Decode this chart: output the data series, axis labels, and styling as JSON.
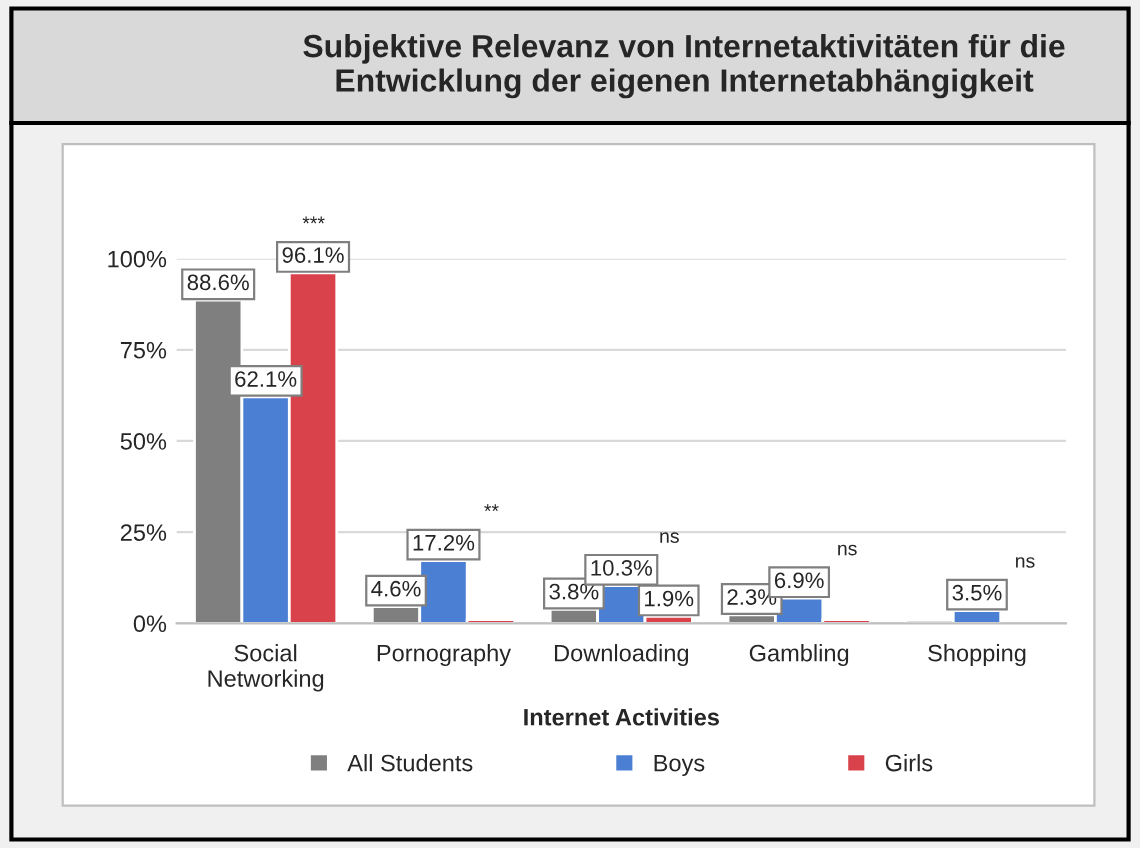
{
  "chart_data": {
    "type": "bar",
    "title": "Subjektive Relevanz von Internetaktivitäten für die\nEntwicklung der eigenen Internetabhängigkeit",
    "xlabel": "Internet Activities",
    "categories": [
      "Social\nNetworking",
      "Pornography",
      "Downloading",
      "Gambling",
      "Shopping"
    ],
    "series": [
      {
        "name": "All Students",
        "color": "#7f7f7f",
        "values": [
          88.6,
          4.6,
          3.8,
          2.3,
          0.8
        ],
        "value_labels": [
          "88.6%",
          "4.6%",
          "3.8%",
          "2.3%",
          null
        ]
      },
      {
        "name": "Boys",
        "color": "#4a7fd4",
        "values": [
          62.1,
          17.2,
          10.3,
          6.9,
          3.5
        ],
        "value_labels": [
          "62.1%",
          "17.2%",
          "10.3%",
          "6.9%",
          "3.5%"
        ]
      },
      {
        "name": "Girls",
        "color": "#d9424a",
        "values": [
          96.1,
          1.0,
          1.9,
          1.0,
          null
        ],
        "value_labels": [
          "96.1%",
          null,
          "1.9%",
          null,
          null
        ]
      }
    ],
    "annotations": [
      "***",
      "**",
      "ns",
      "ns",
      "ns"
    ],
    "ylim": [
      0,
      100
    ],
    "yticks": [
      {
        "value": 0,
        "label": "0%"
      },
      {
        "value": 25,
        "label": "25%"
      },
      {
        "value": 50,
        "label": "50%"
      },
      {
        "value": 75,
        "label": "75%"
      },
      {
        "value": 100,
        "label": "100%"
      }
    ],
    "grid": "y",
    "legend": "bottom"
  }
}
